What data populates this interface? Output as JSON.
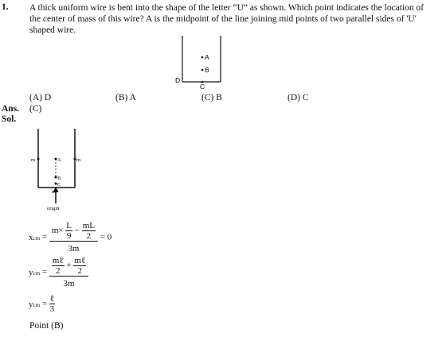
{
  "question": {
    "number": "1.",
    "text": "A thick uniform wire is bent into the shape of the letter “U” as shown. Which point indicates the location of the center of mass of this wire? A is the midpoint of the line joining mid points of two parallel sides of 'U' shaped wire.",
    "figure_labels": {
      "a": "A",
      "b": "B",
      "c": "C",
      "d": "D"
    }
  },
  "options": [
    "(A) D",
    "(B) A",
    "(C) B",
    "(D) C"
  ],
  "answer": {
    "label": "Ans.",
    "value": "(C)"
  },
  "solution": {
    "label": "Sol.",
    "figure_labels": {
      "m_left": "m",
      "m_right": "m",
      "m_bottom": "m",
      "a": "A",
      "b": "B",
      "c": "C",
      "origin": "origin"
    },
    "eq1": {
      "lhs": "x",
      "sub": "cm",
      "m_times": "m×",
      "num_L": "L",
      "den_9": "9",
      "num_mL": "mL",
      "den_2": "2",
      "den_3m": "3m",
      "rhs": "= 0"
    },
    "eq2": {
      "lhs": "y",
      "sub": "cm",
      "num1": "mℓ",
      "den1": "2",
      "num2": "mℓ",
      "den2": "2",
      "den_3m": "3m"
    },
    "eq3": {
      "lhs": "y",
      "sub": "cm",
      "num": "ℓ",
      "den": "3"
    },
    "conclusion": "Point (B)"
  }
}
